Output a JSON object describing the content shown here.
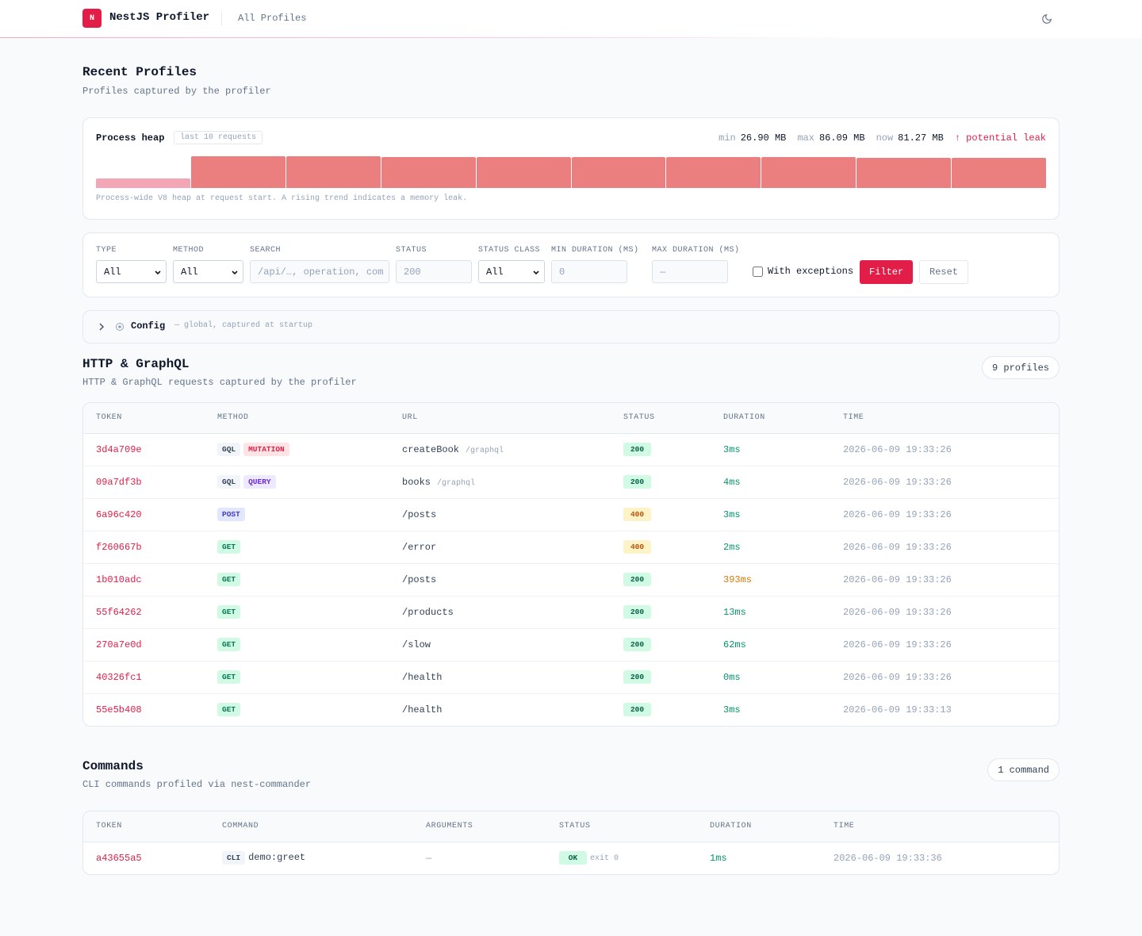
{
  "header": {
    "logo": "N",
    "title": "NestJS Profiler",
    "nav": "All Profiles"
  },
  "page": {
    "title": "Recent Profiles",
    "subtitle": "Profiles captured by the profiler"
  },
  "heap": {
    "title": "Process heap",
    "badge": "last 10 requests",
    "stats": [
      {
        "label": "min",
        "value": "26.90 MB"
      },
      {
        "label": "max",
        "value": "86.09 MB"
      },
      {
        "label": "now",
        "value": "81.27 MB"
      }
    ],
    "warning": "↑ potential leak",
    "values": [
      26.9,
      86.09,
      85.2,
      84.8,
      84.4,
      83.8,
      83.3,
      82.9,
      81.9,
      81.27
    ],
    "note": "Process-wide V8 heap at request start. A rising trend indicates a memory leak."
  },
  "filters": {
    "fields": [
      {
        "label": "TYPE",
        "value": "All"
      },
      {
        "label": "METHOD",
        "value": "All"
      },
      {
        "label": "SEARCH",
        "placeholder": "/api/…, operation, com"
      },
      {
        "label": "STATUS",
        "placeholder": "200"
      },
      {
        "label": "STATUS CLASS",
        "value": "All"
      },
      {
        "label": "MIN DURATION (MS)",
        "placeholder": "0"
      },
      {
        "label": "MAX DURATION (MS)",
        "placeholder": "—"
      }
    ],
    "checkbox": "With exceptions",
    "submit": "Filter",
    "reset": "Reset"
  },
  "config": {
    "title": "Config",
    "note": "— global, captured at startup"
  },
  "http": {
    "title": "HTTP & GraphQL",
    "subtitle": "HTTP & GraphQL requests captured by the profiler",
    "count": "9 profiles",
    "columns": [
      "TOKEN",
      "METHOD",
      "URL",
      "STATUS",
      "DURATION",
      "TIME"
    ],
    "rows": [
      {
        "token": "3d4a709e",
        "tags": [
          "GQL",
          "MUTATION"
        ],
        "url": "createBook",
        "path": "/graphql",
        "status": "200",
        "duration": "3ms",
        "time": "2026-06-09 19:33:26"
      },
      {
        "token": "09a7df3b",
        "tags": [
          "GQL",
          "QUERY"
        ],
        "url": "books",
        "path": "/graphql",
        "status": "200",
        "duration": "4ms",
        "time": "2026-06-09 19:33:26"
      },
      {
        "token": "6a96c420",
        "tags": [
          "POST"
        ],
        "url": "/posts",
        "status": "400",
        "duration": "3ms",
        "time": "2026-06-09 19:33:26"
      },
      {
        "token": "f260667b",
        "tags": [
          "GET"
        ],
        "url": "/error",
        "status": "400",
        "duration": "2ms",
        "time": "2026-06-09 19:33:26"
      },
      {
        "token": "1b010adc",
        "tags": [
          "GET"
        ],
        "url": "/posts",
        "status": "200",
        "duration": "393ms",
        "time": "2026-06-09 19:33:26"
      },
      {
        "token": "55f64262",
        "tags": [
          "GET"
        ],
        "url": "/products",
        "status": "200",
        "duration": "13ms",
        "time": "2026-06-09 19:33:26"
      },
      {
        "token": "270a7e0d",
        "tags": [
          "GET"
        ],
        "url": "/slow",
        "status": "200",
        "duration": "62ms",
        "time": "2026-06-09 19:33:26"
      },
      {
        "token": "40326fc1",
        "tags": [
          "GET"
        ],
        "url": "/health",
        "status": "200",
        "duration": "0ms",
        "time": "2026-06-09 19:33:26"
      },
      {
        "token": "55e5b408",
        "tags": [
          "GET"
        ],
        "url": "/health",
        "status": "200",
        "duration": "3ms",
        "time": "2026-06-09 19:33:13"
      }
    ]
  },
  "commands": {
    "title": "Commands",
    "subtitle": "CLI commands profiled via nest-commander",
    "count": "1 command",
    "columns": [
      "TOKEN",
      "COMMAND",
      "ARGUMENTS",
      "STATUS",
      "DURATION",
      "TIME"
    ],
    "rows": [
      {
        "token": "a43655a5",
        "tags": [
          "CLI"
        ],
        "command": "demo:greet",
        "arguments": "—",
        "status": "OK",
        "exit": "exit 0",
        "duration": "1ms",
        "time": "2026-06-09 19:33:36"
      }
    ]
  }
}
